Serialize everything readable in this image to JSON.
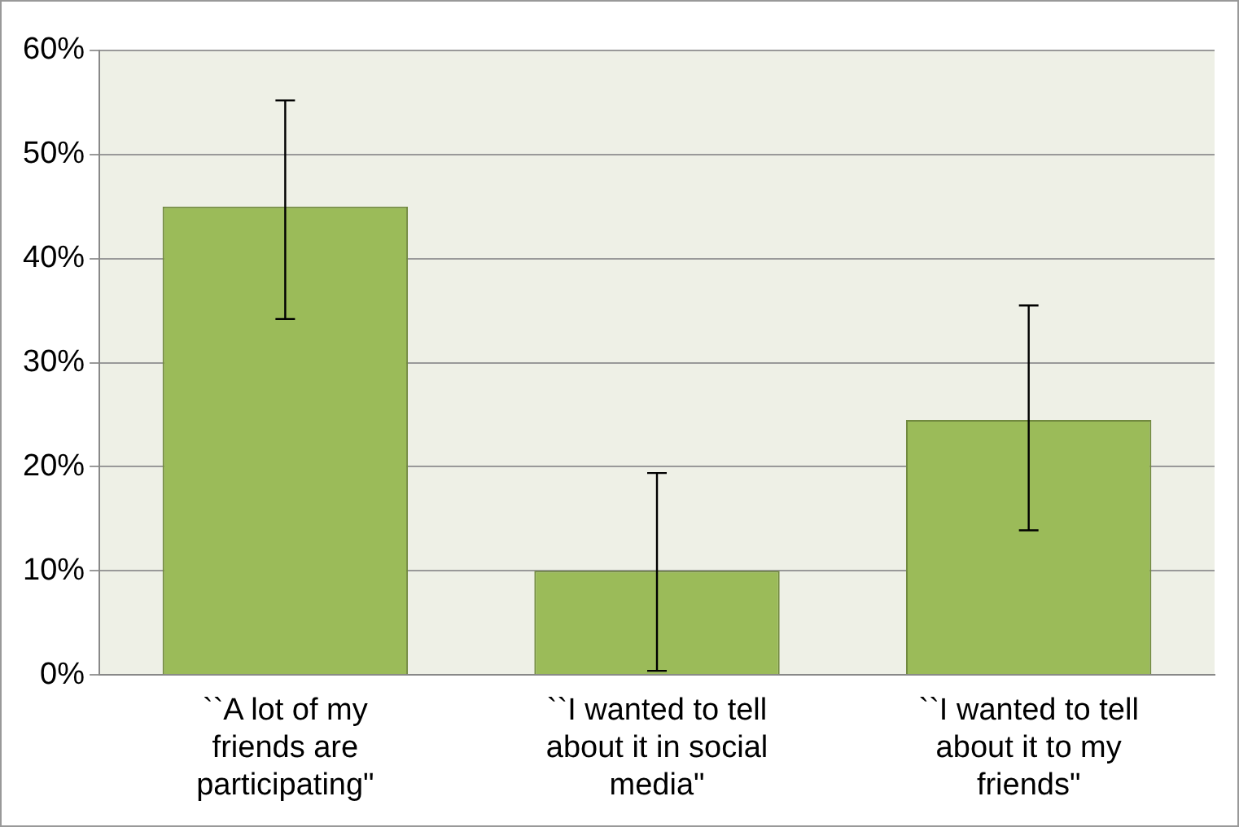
{
  "chart_data": {
    "type": "bar",
    "categories": [
      "``A lot of my friends are participating\"",
      "``I wanted to tell about it in social media\"",
      "``I wanted to tell about it to my friends\""
    ],
    "values": [
      45,
      10,
      24.5
    ],
    "color": "#9bbb59",
    "errors": [
      [
        34.2,
        55.2
      ],
      [
        0.4,
        19.4
      ],
      [
        13.9,
        35.5
      ]
    ],
    "ylim": [
      0,
      60
    ],
    "yticks": [
      {
        "value": 0,
        "label": "0%"
      },
      {
        "value": 10,
        "label": "10%"
      },
      {
        "value": 20,
        "label": "20%"
      },
      {
        "value": 30,
        "label": "30%"
      },
      {
        "value": 40,
        "label": "40%"
      },
      {
        "value": 50,
        "label": "50%"
      },
      {
        "value": 60,
        "label": "60%"
      }
    ],
    "grid": "y"
  }
}
